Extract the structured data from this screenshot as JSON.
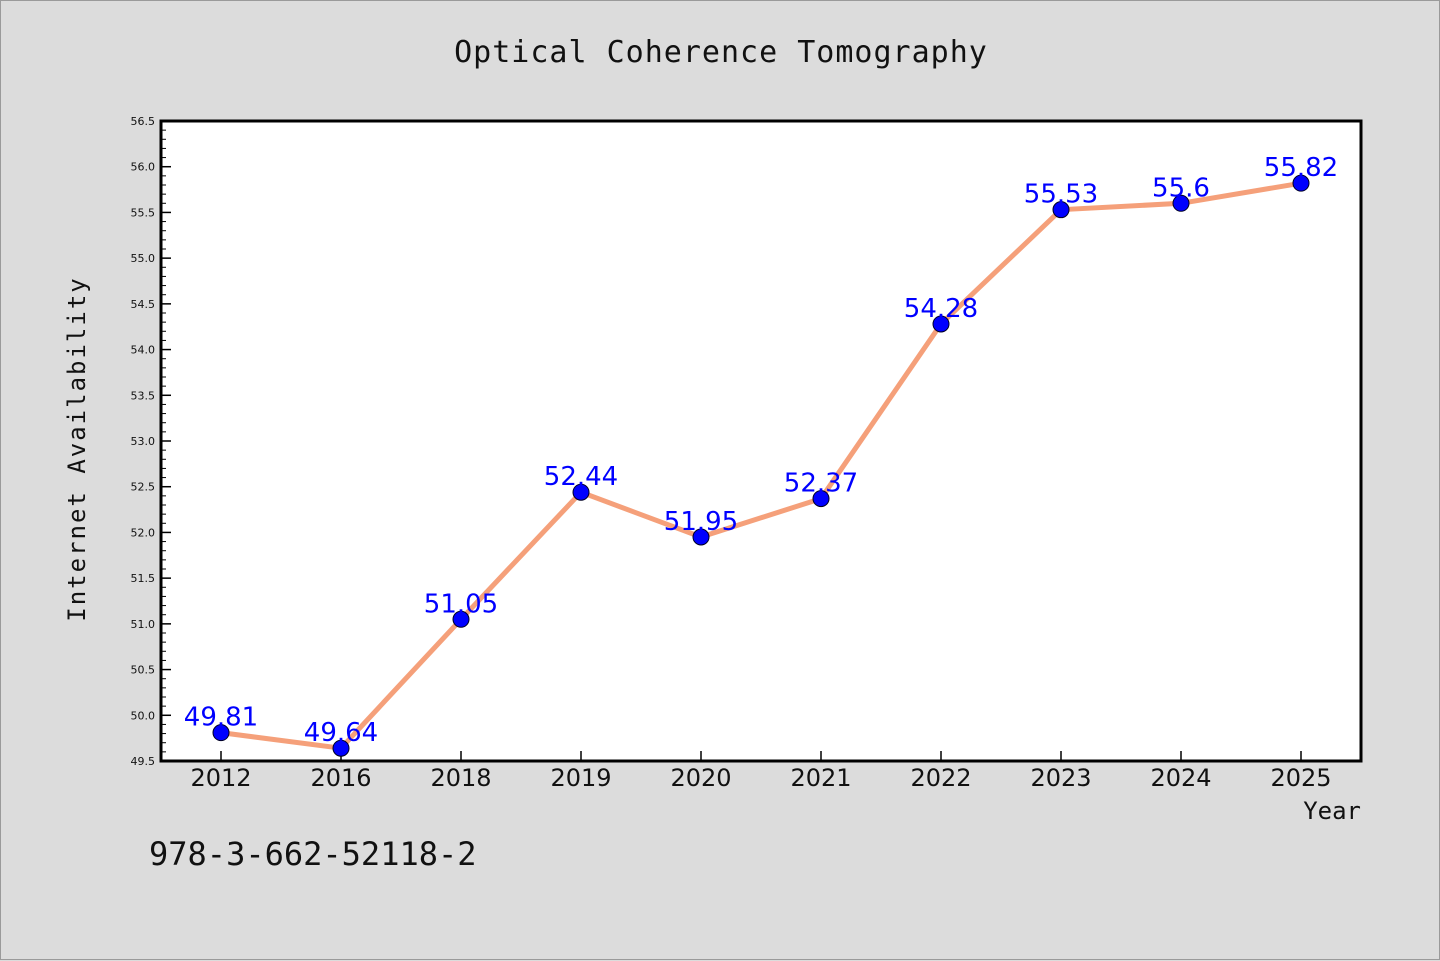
{
  "title": "Optical Coherence Tomography",
  "footer_id": "978-3-662-52118-2",
  "colors": {
    "background": "#dcdcdc",
    "plot_background": "#ffffff",
    "line": "#f5a07a",
    "marker": "#0000ff",
    "data_label": "#0000ff"
  },
  "chart_data": {
    "type": "line",
    "title": "Optical Coherence Tomography",
    "xlabel": "Year",
    "ylabel": "Internet Availability",
    "categories": [
      "2012",
      "2016",
      "2018",
      "2019",
      "2020",
      "2021",
      "2022",
      "2023",
      "2024",
      "2025"
    ],
    "series": [
      {
        "values": [
          49.81,
          49.64,
          51.05,
          52.44,
          51.95,
          52.37,
          54.28,
          55.53,
          55.6,
          55.82
        ],
        "data_labels": [
          "49.81",
          "49.64",
          "51.05",
          "52.44",
          "51.95",
          "52.37",
          "54.28",
          "55.53",
          "55.6",
          "55.82"
        ]
      }
    ],
    "ylim": [
      49.5,
      56.5
    ],
    "yticks": [
      "49.5",
      "50.0",
      "50.5",
      "51.0",
      "51.5",
      "52.0",
      "52.5",
      "53.0",
      "53.5",
      "54.0",
      "54.5",
      "55.0",
      "55.5",
      "56.0",
      "56.5"
    ],
    "grid": false,
    "legend": "none"
  }
}
